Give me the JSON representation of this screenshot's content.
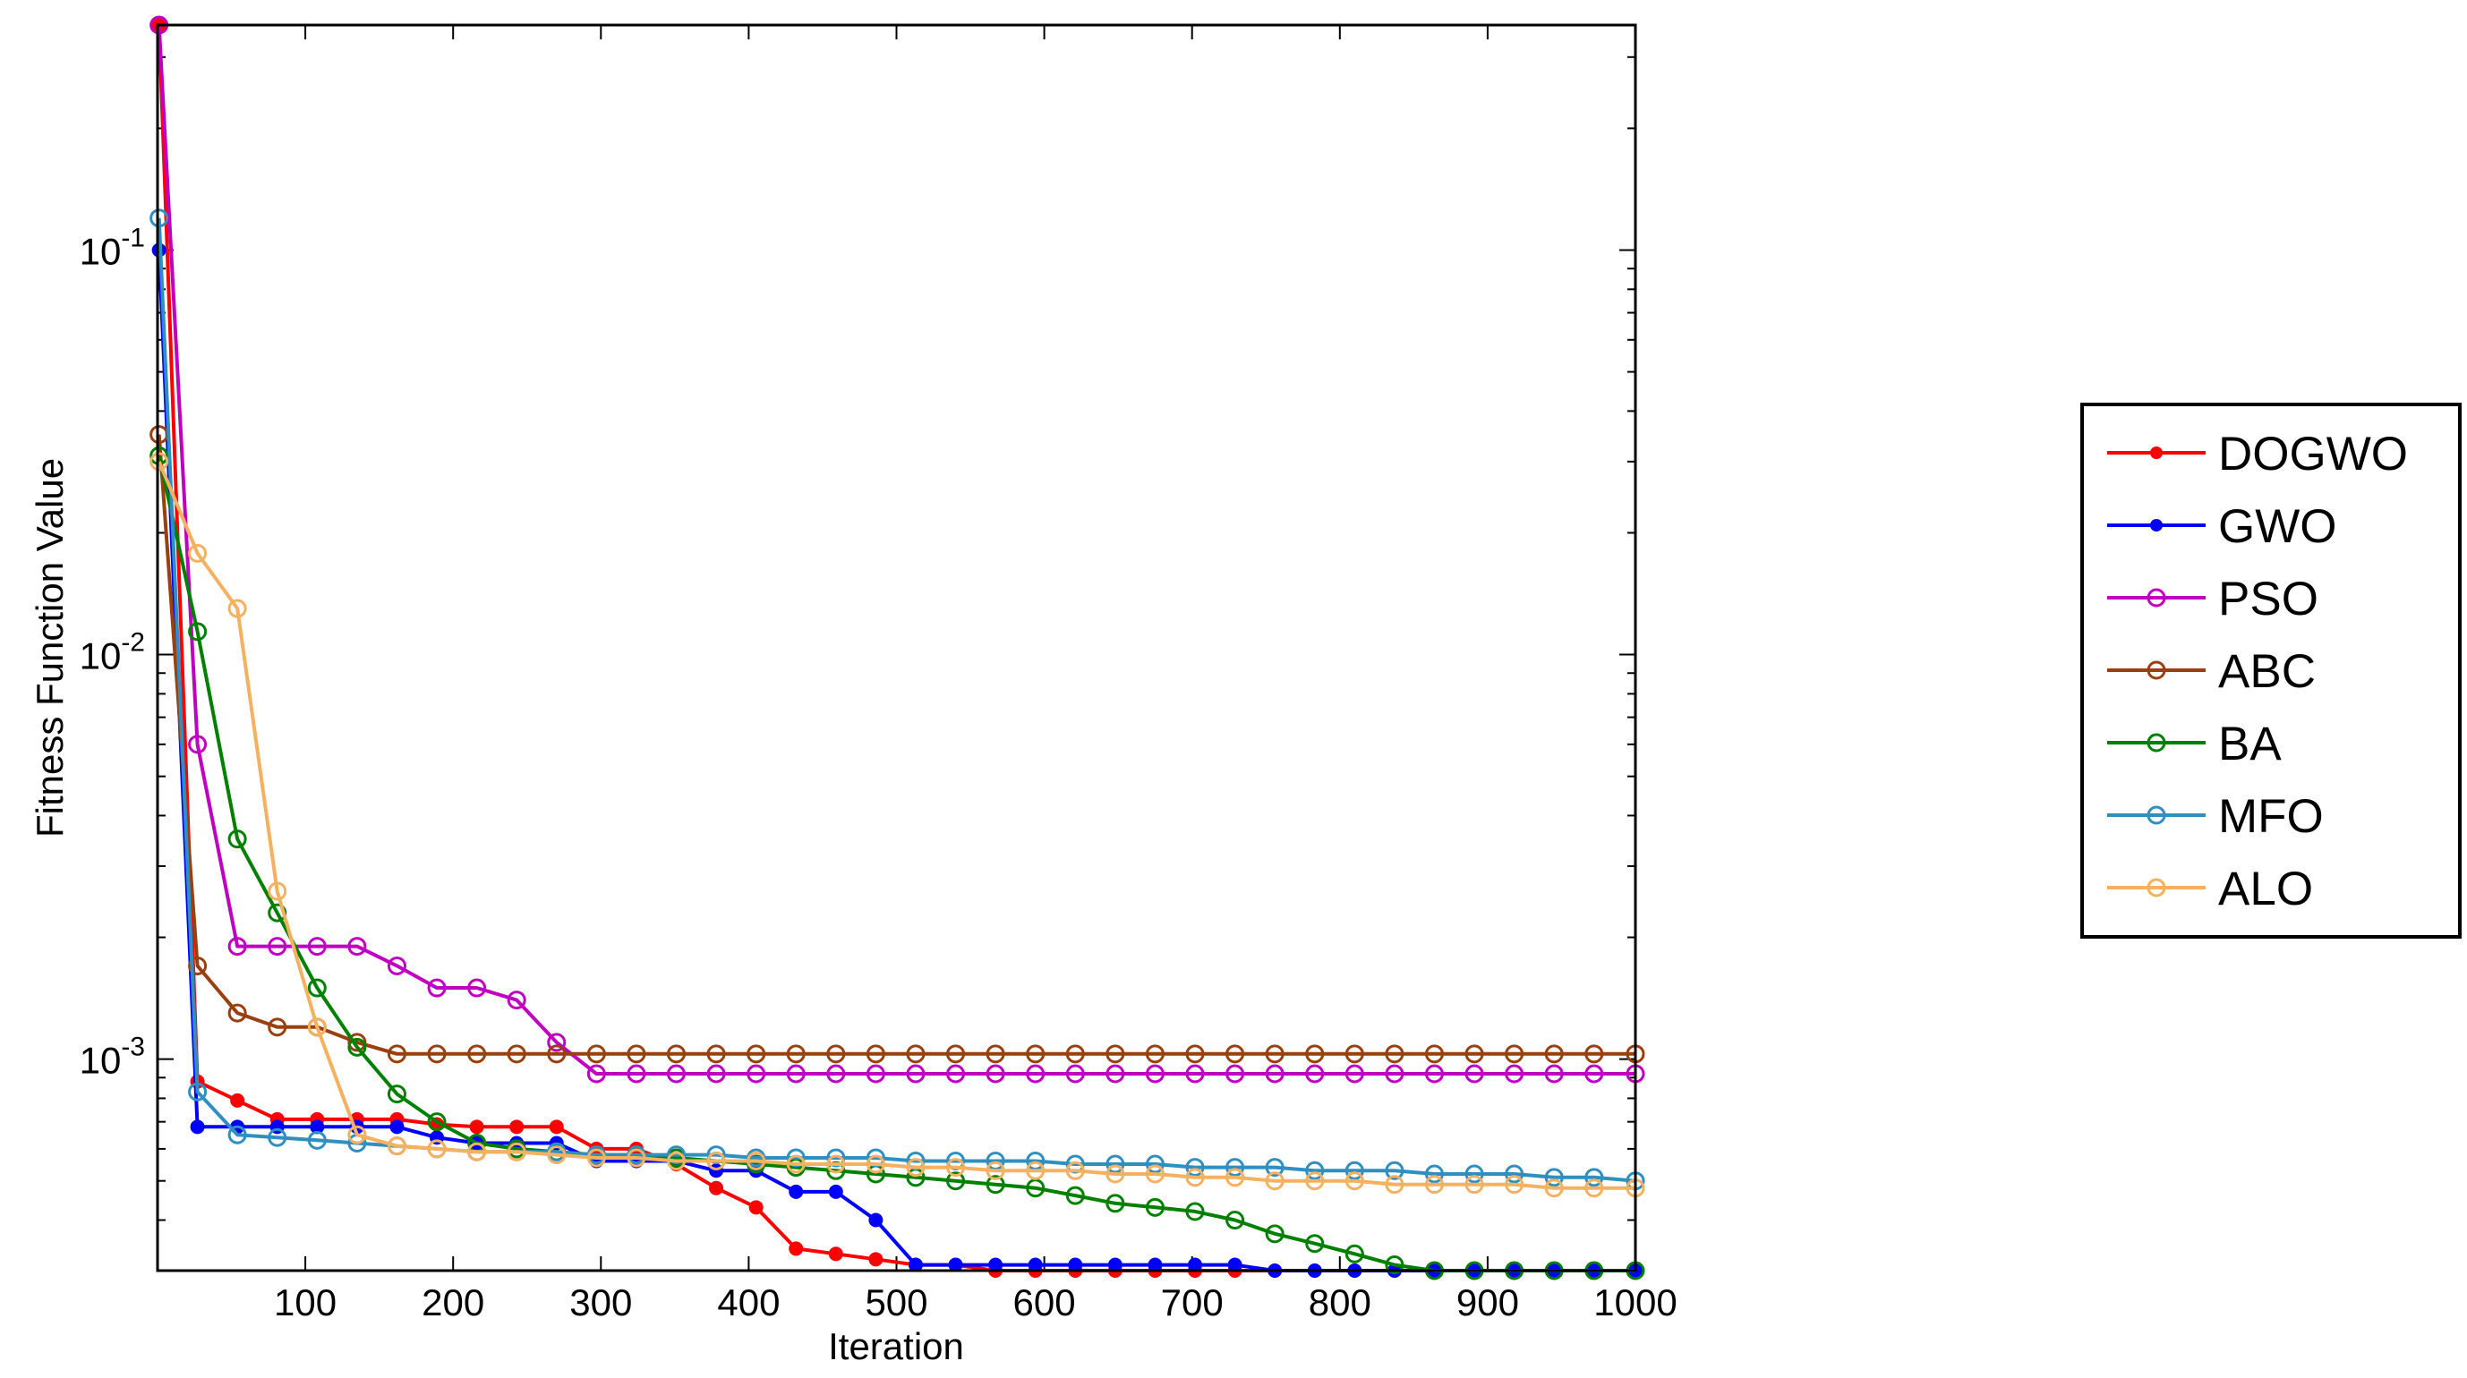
{
  "chart_data": {
    "type": "line",
    "xlabel": "Iteration",
    "ylabel": "Fitness Function Value",
    "xlim": [
      0,
      1000
    ],
    "ylim": [
      0.0003,
      0.36
    ],
    "yscale": "log",
    "xticks": [
      100,
      200,
      300,
      400,
      500,
      600,
      700,
      800,
      900,
      1000
    ],
    "xtick_labels": [
      "100",
      "200",
      "300",
      "400",
      "500",
      "600",
      "700",
      "800",
      "900",
      "1000"
    ],
    "yticks": [
      {
        "value": 0.1,
        "base": "10",
        "exp": "-1"
      },
      {
        "value": 0.01,
        "base": "10",
        "exp": "-2"
      },
      {
        "value": 0.001,
        "base": "10",
        "exp": "-3"
      }
    ],
    "grid": false,
    "legend_position": "right",
    "x": [
      1,
      27,
      54,
      81,
      108,
      135,
      162,
      189,
      216,
      243,
      270,
      297,
      324,
      351,
      378,
      405,
      432,
      459,
      486,
      513,
      540,
      567,
      594,
      621,
      648,
      675,
      702,
      729,
      756,
      783,
      810,
      837,
      864,
      891,
      918,
      945,
      972,
      1000
    ],
    "series": [
      {
        "name": "DOGWO",
        "color": "#ff0000",
        "marker": "dot",
        "values": [
          0.36,
          0.00088,
          0.00079,
          0.00071,
          0.00071,
          0.00071,
          0.00071,
          0.00069,
          0.00068,
          0.00068,
          0.00068,
          0.0006,
          0.0006,
          0.00055,
          0.00048,
          0.00043,
          0.00034,
          0.00033,
          0.00032,
          0.00031,
          0.00031,
          0.0003,
          0.0003,
          0.0003,
          0.0003,
          0.0003,
          0.0003,
          0.0003,
          0.0003,
          0.0003,
          0.0003,
          0.0003,
          0.0003,
          0.0003,
          0.0003,
          0.0003,
          0.0003,
          0.0003
        ]
      },
      {
        "name": "GWO",
        "color": "#0000ff",
        "marker": "dot",
        "values": [
          0.1,
          0.00068,
          0.00068,
          0.00068,
          0.00068,
          0.00068,
          0.00068,
          0.00064,
          0.00062,
          0.00062,
          0.00062,
          0.00056,
          0.00056,
          0.00056,
          0.00053,
          0.00053,
          0.00047,
          0.00047,
          0.0004,
          0.00031,
          0.00031,
          0.00031,
          0.00031,
          0.00031,
          0.00031,
          0.00031,
          0.00031,
          0.00031,
          0.0003,
          0.0003,
          0.0003,
          0.0003,
          0.0003,
          0.0003,
          0.0003,
          0.0003,
          0.0003,
          0.0003
        ]
      },
      {
        "name": "PSO",
        "color": "#c000c0",
        "marker": "circle",
        "values": [
          0.36,
          0.006,
          0.0019,
          0.0019,
          0.0019,
          0.0019,
          0.0017,
          0.0015,
          0.0015,
          0.0014,
          0.0011,
          0.00092,
          0.00092,
          0.00092,
          0.00092,
          0.00092,
          0.00092,
          0.00092,
          0.00092,
          0.00092,
          0.00092,
          0.00092,
          0.00092,
          0.00092,
          0.00092,
          0.00092,
          0.00092,
          0.00092,
          0.00092,
          0.00092,
          0.00092,
          0.00092,
          0.00092,
          0.00092,
          0.00092,
          0.00092,
          0.00092,
          0.00092
        ]
      },
      {
        "name": "ABC",
        "color": "#9a3f0f",
        "marker": "circle",
        "values": [
          0.035,
          0.0017,
          0.0013,
          0.0012,
          0.0012,
          0.0011,
          0.00103,
          0.00103,
          0.00103,
          0.00103,
          0.00103,
          0.00103,
          0.00103,
          0.00103,
          0.00103,
          0.00103,
          0.00103,
          0.00103,
          0.00103,
          0.00103,
          0.00103,
          0.00103,
          0.00103,
          0.00103,
          0.00103,
          0.00103,
          0.00103,
          0.00103,
          0.00103,
          0.00103,
          0.00103,
          0.00103,
          0.00103,
          0.00103,
          0.00103,
          0.00103,
          0.00103,
          0.00103
        ]
      },
      {
        "name": "BA",
        "color": "#008000",
        "marker": "circle",
        "values": [
          0.031,
          0.0114,
          0.0035,
          0.0023,
          0.0015,
          0.00107,
          0.00082,
          0.0007,
          0.00062,
          0.0006,
          0.00059,
          0.00058,
          0.00058,
          0.00057,
          0.00056,
          0.00055,
          0.00054,
          0.00053,
          0.00052,
          0.00051,
          0.0005,
          0.00049,
          0.00048,
          0.00046,
          0.00044,
          0.00043,
          0.00042,
          0.0004,
          0.00037,
          0.00035,
          0.00033,
          0.00031,
          0.0003,
          0.0003,
          0.0003,
          0.0003,
          0.0003,
          0.0003
        ]
      },
      {
        "name": "MFO",
        "color": "#2f8fc0",
        "marker": "circle",
        "values": [
          0.12,
          0.00083,
          0.00065,
          0.00064,
          0.00063,
          0.00062,
          0.00061,
          0.0006,
          0.00059,
          0.00059,
          0.00059,
          0.00058,
          0.00058,
          0.00058,
          0.00058,
          0.00057,
          0.00057,
          0.00057,
          0.00057,
          0.00056,
          0.00056,
          0.00056,
          0.00056,
          0.00055,
          0.00055,
          0.00055,
          0.00054,
          0.00054,
          0.00054,
          0.00053,
          0.00053,
          0.00053,
          0.00052,
          0.00052,
          0.00052,
          0.00051,
          0.00051,
          0.0005
        ]
      },
      {
        "name": "ALO",
        "color": "#f5b060",
        "marker": "circle",
        "values": [
          0.03,
          0.0178,
          0.013,
          0.0026,
          0.0012,
          0.00065,
          0.00061,
          0.0006,
          0.00059,
          0.00059,
          0.00058,
          0.00057,
          0.00057,
          0.00056,
          0.00056,
          0.00056,
          0.00055,
          0.00055,
          0.00055,
          0.00054,
          0.00054,
          0.00053,
          0.00053,
          0.00053,
          0.00052,
          0.00052,
          0.00051,
          0.00051,
          0.0005,
          0.0005,
          0.0005,
          0.00049,
          0.00049,
          0.00049,
          0.00049,
          0.00048,
          0.00048,
          0.00048
        ]
      }
    ]
  }
}
